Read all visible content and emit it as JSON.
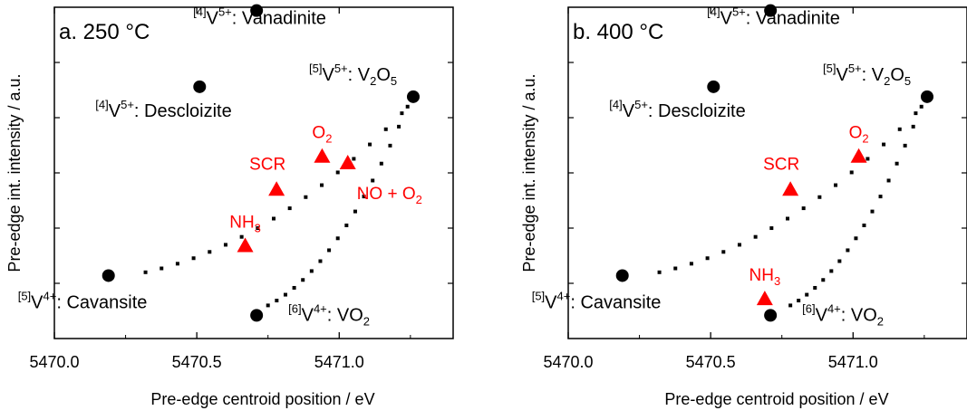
{
  "chart_data": [
    {
      "type": "scatter",
      "panel_label": "a. 250 °C",
      "xlabel": "Pre-edge centroid position / eV",
      "ylabel": "Pre-edge int. intensity / a.u.",
      "xlim": [
        5470.0,
        5471.4
      ],
      "ylim": [
        0,
        1
      ],
      "xticks": [
        "5470.0",
        "5470.5",
        "5471.0"
      ],
      "ytick_labels_shown": false,
      "grid": false,
      "references": [
        {
          "sup": "[4]",
          "ion": "V",
          "charge": "5+",
          "name": "Vanadinite",
          "x": 5470.71,
          "y": 0.99
        },
        {
          "sup": "[4]",
          "ion": "V",
          "charge": "5+",
          "name": "Descloizite",
          "x": 5470.51,
          "y": 0.76
        },
        {
          "sup": "[5]",
          "ion": "V",
          "charge": "5+",
          "name": "V",
          "sub": "2",
          "tail": "O",
          "sub2": "5",
          "x": 5471.26,
          "y": 0.73
        },
        {
          "sup": "[5]",
          "ion": "V",
          "charge": "4+",
          "name": "Cavansite",
          "x": 5470.19,
          "y": 0.19
        },
        {
          "sup": "[6]",
          "ion": "V",
          "charge": "4+",
          "name": "VO",
          "sub": "2",
          "x": 5470.71,
          "y": 0.07
        }
      ],
      "samples": [
        {
          "label": "O",
          "sub": "2",
          "x": 5470.94,
          "y": 0.55
        },
        {
          "label": "NO + O",
          "sub": "2",
          "x": 5471.03,
          "y": 0.53
        },
        {
          "label": "SCR",
          "x": 5470.78,
          "y": 0.45
        },
        {
          "label": "NH",
          "sub": "3",
          "x": 5470.67,
          "y": 0.28
        }
      ]
    },
    {
      "type": "scatter",
      "panel_label": "b. 400 °C",
      "xlabel": "Pre-edge centroid position / eV",
      "ylabel": "Pre-edge int. intensity / a.u.",
      "xlim": [
        5470.0,
        5471.4
      ],
      "ylim": [
        0,
        1
      ],
      "xticks": [
        "5470.0",
        "5470.5",
        "5471.0"
      ],
      "ytick_labels_shown": false,
      "grid": false,
      "references": [
        {
          "sup": "[4]",
          "ion": "V",
          "charge": "5+",
          "name": "Vanadinite",
          "x": 5470.71,
          "y": 0.99
        },
        {
          "sup": "[4]",
          "ion": "V",
          "charge": "5+",
          "name": "Descloizite",
          "x": 5470.51,
          "y": 0.76
        },
        {
          "sup": "[5]",
          "ion": "V",
          "charge": "5+",
          "name": "V",
          "sub": "2",
          "tail": "O",
          "sub2": "5",
          "x": 5471.26,
          "y": 0.73
        },
        {
          "sup": "[5]",
          "ion": "V",
          "charge": "4+",
          "name": "Cavansite",
          "x": 5470.19,
          "y": 0.19
        },
        {
          "sup": "[6]",
          "ion": "V",
          "charge": "4+",
          "name": "VO",
          "sub": "2",
          "x": 5470.71,
          "y": 0.07
        }
      ],
      "samples": [
        {
          "label": "O",
          "sub": "2",
          "x": 5471.02,
          "y": 0.55
        },
        {
          "label": "SCR",
          "x": 5470.78,
          "y": 0.45
        },
        {
          "label": "NH",
          "sub": "3",
          "x": 5470.69,
          "y": 0.12
        }
      ]
    }
  ],
  "colors": {
    "reference": "#000000",
    "sample": "#ff0000",
    "trend": "#000000",
    "axis": "#000000"
  }
}
